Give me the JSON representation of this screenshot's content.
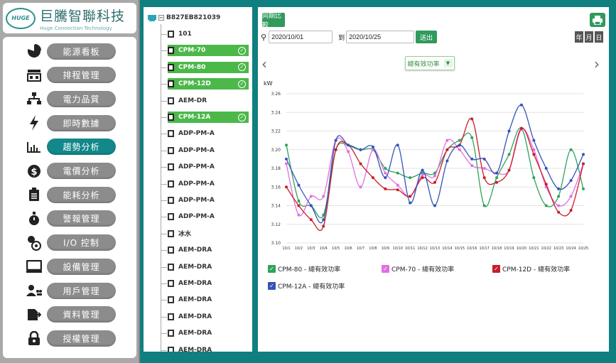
{
  "brand": {
    "title": "巨騰智聯科技",
    "subtitle": "Huge Connection Technology",
    "mark": "HUGE"
  },
  "menu": [
    {
      "label": "能源看板",
      "icon": "pie-chart-icon",
      "active": false
    },
    {
      "label": "排程管理",
      "icon": "schedule-icon",
      "active": false
    },
    {
      "label": "電力品質",
      "icon": "network-icon",
      "active": false
    },
    {
      "label": "即時數據",
      "icon": "bolt-icon",
      "active": false
    },
    {
      "label": "趨勢分析",
      "icon": "bar-chart-icon",
      "active": true
    },
    {
      "label": "電價分析",
      "icon": "dollar-icon",
      "active": false
    },
    {
      "label": "能耗分析",
      "icon": "clipboard-icon",
      "active": false
    },
    {
      "label": "警報管理",
      "icon": "alarm-icon",
      "active": false
    },
    {
      "label": "I/O 控制",
      "icon": "io-control-icon",
      "active": false
    },
    {
      "label": "設備管理",
      "icon": "monitor-icon",
      "active": false
    },
    {
      "label": "用戶管理",
      "icon": "users-icon",
      "active": false
    },
    {
      "label": "資料管理",
      "icon": "data-export-icon",
      "active": false
    },
    {
      "label": "授權管理",
      "icon": "lock-icon",
      "active": false
    }
  ],
  "tree": {
    "root": "B827EB821039",
    "items": [
      {
        "label": "101",
        "selected": false
      },
      {
        "label": "CPM-70",
        "selected": true
      },
      {
        "label": "CPM-80",
        "selected": true
      },
      {
        "label": "CPM-12D",
        "selected": true
      },
      {
        "label": "AEM-DR",
        "selected": false
      },
      {
        "label": "CPM-12A",
        "selected": true
      },
      {
        "label": "ADP-PM-A",
        "selected": false
      },
      {
        "label": "ADP-PM-A",
        "selected": false
      },
      {
        "label": "ADP-PM-A",
        "selected": false
      },
      {
        "label": "ADP-PM-A",
        "selected": false
      },
      {
        "label": "ADP-PM-A",
        "selected": false
      },
      {
        "label": "ADP-PM-A",
        "selected": false
      },
      {
        "label": "冰水",
        "selected": false
      },
      {
        "label": "AEM-DRA",
        "selected": false
      },
      {
        "label": "AEM-DRA",
        "selected": false
      },
      {
        "label": "AEM-DRA",
        "selected": false
      },
      {
        "label": "AEM-DRA",
        "selected": false
      },
      {
        "label": "AEM-DRA",
        "selected": false
      },
      {
        "label": "AEM-DRA",
        "selected": false
      },
      {
        "label": "AEM-DRA",
        "selected": false
      }
    ]
  },
  "toolbar": {
    "compare_label": "同期比較",
    "start_date": "2020/10/01",
    "to_label": "到",
    "end_date": "2020/10/25",
    "go_label": "送出",
    "periods": [
      "年",
      "月",
      "日"
    ],
    "metric_select": "總有效功率"
  },
  "chart_data": {
    "type": "line",
    "ylabel": "kW",
    "ylim": [
      3.1,
      3.26
    ],
    "yticks": [
      "3.10",
      "3.12",
      "3.14",
      "3.16",
      "3.18",
      "3.20",
      "3.22",
      "3.24",
      "3.26"
    ],
    "categories": [
      "10/1",
      "10/2",
      "10/3",
      "10/4",
      "10/5",
      "10/6",
      "10/7",
      "10/8",
      "10/9",
      "10/10",
      "10/11",
      "10/12",
      "10/13",
      "10/14",
      "10/15",
      "10/16",
      "10/17",
      "10/18",
      "10/19",
      "10/20",
      "10/21",
      "10/22",
      "10/23",
      "10/24",
      "10/25"
    ],
    "grid": true,
    "series": [
      {
        "name": "CPM-80 - 總有效功率",
        "color": "#2fa35b",
        "values": [
          3.205,
          3.145,
          3.14,
          3.13,
          3.2,
          3.205,
          3.2,
          3.2,
          3.18,
          3.175,
          3.17,
          3.175,
          3.175,
          3.2,
          3.21,
          3.213,
          3.14,
          3.17,
          3.195,
          3.223,
          3.17,
          3.14,
          3.15,
          3.2,
          3.158
        ]
      },
      {
        "name": "CPM-70 - 總有效功率",
        "color": "#e070e0",
        "values": [
          3.185,
          3.13,
          3.15,
          3.15,
          3.21,
          3.198,
          3.16,
          3.2,
          3.175,
          3.162,
          3.15,
          3.173,
          3.172,
          3.21,
          3.2,
          3.183,
          3.18,
          3.175,
          3.178,
          3.222,
          3.2,
          3.16,
          3.14,
          3.15,
          3.185
        ]
      },
      {
        "name": "CPM-12D - 總有效功率",
        "color": "#c81e28",
        "values": [
          3.16,
          3.14,
          3.125,
          3.118,
          3.2,
          3.205,
          3.185,
          3.17,
          3.158,
          3.157,
          3.15,
          3.17,
          3.165,
          3.2,
          3.205,
          3.233,
          3.17,
          3.165,
          3.178,
          3.223,
          3.195,
          3.163,
          3.133,
          3.135,
          3.185
        ]
      },
      {
        "name": "CPM-12A - 總有效功率",
        "color": "#3553b8",
        "values": [
          3.19,
          3.162,
          3.14,
          3.125,
          3.21,
          3.205,
          3.2,
          3.203,
          3.17,
          3.205,
          3.143,
          3.178,
          3.14,
          3.188,
          3.205,
          3.19,
          3.19,
          3.175,
          3.22,
          3.248,
          3.21,
          3.18,
          3.158,
          3.167,
          3.195
        ]
      }
    ]
  }
}
